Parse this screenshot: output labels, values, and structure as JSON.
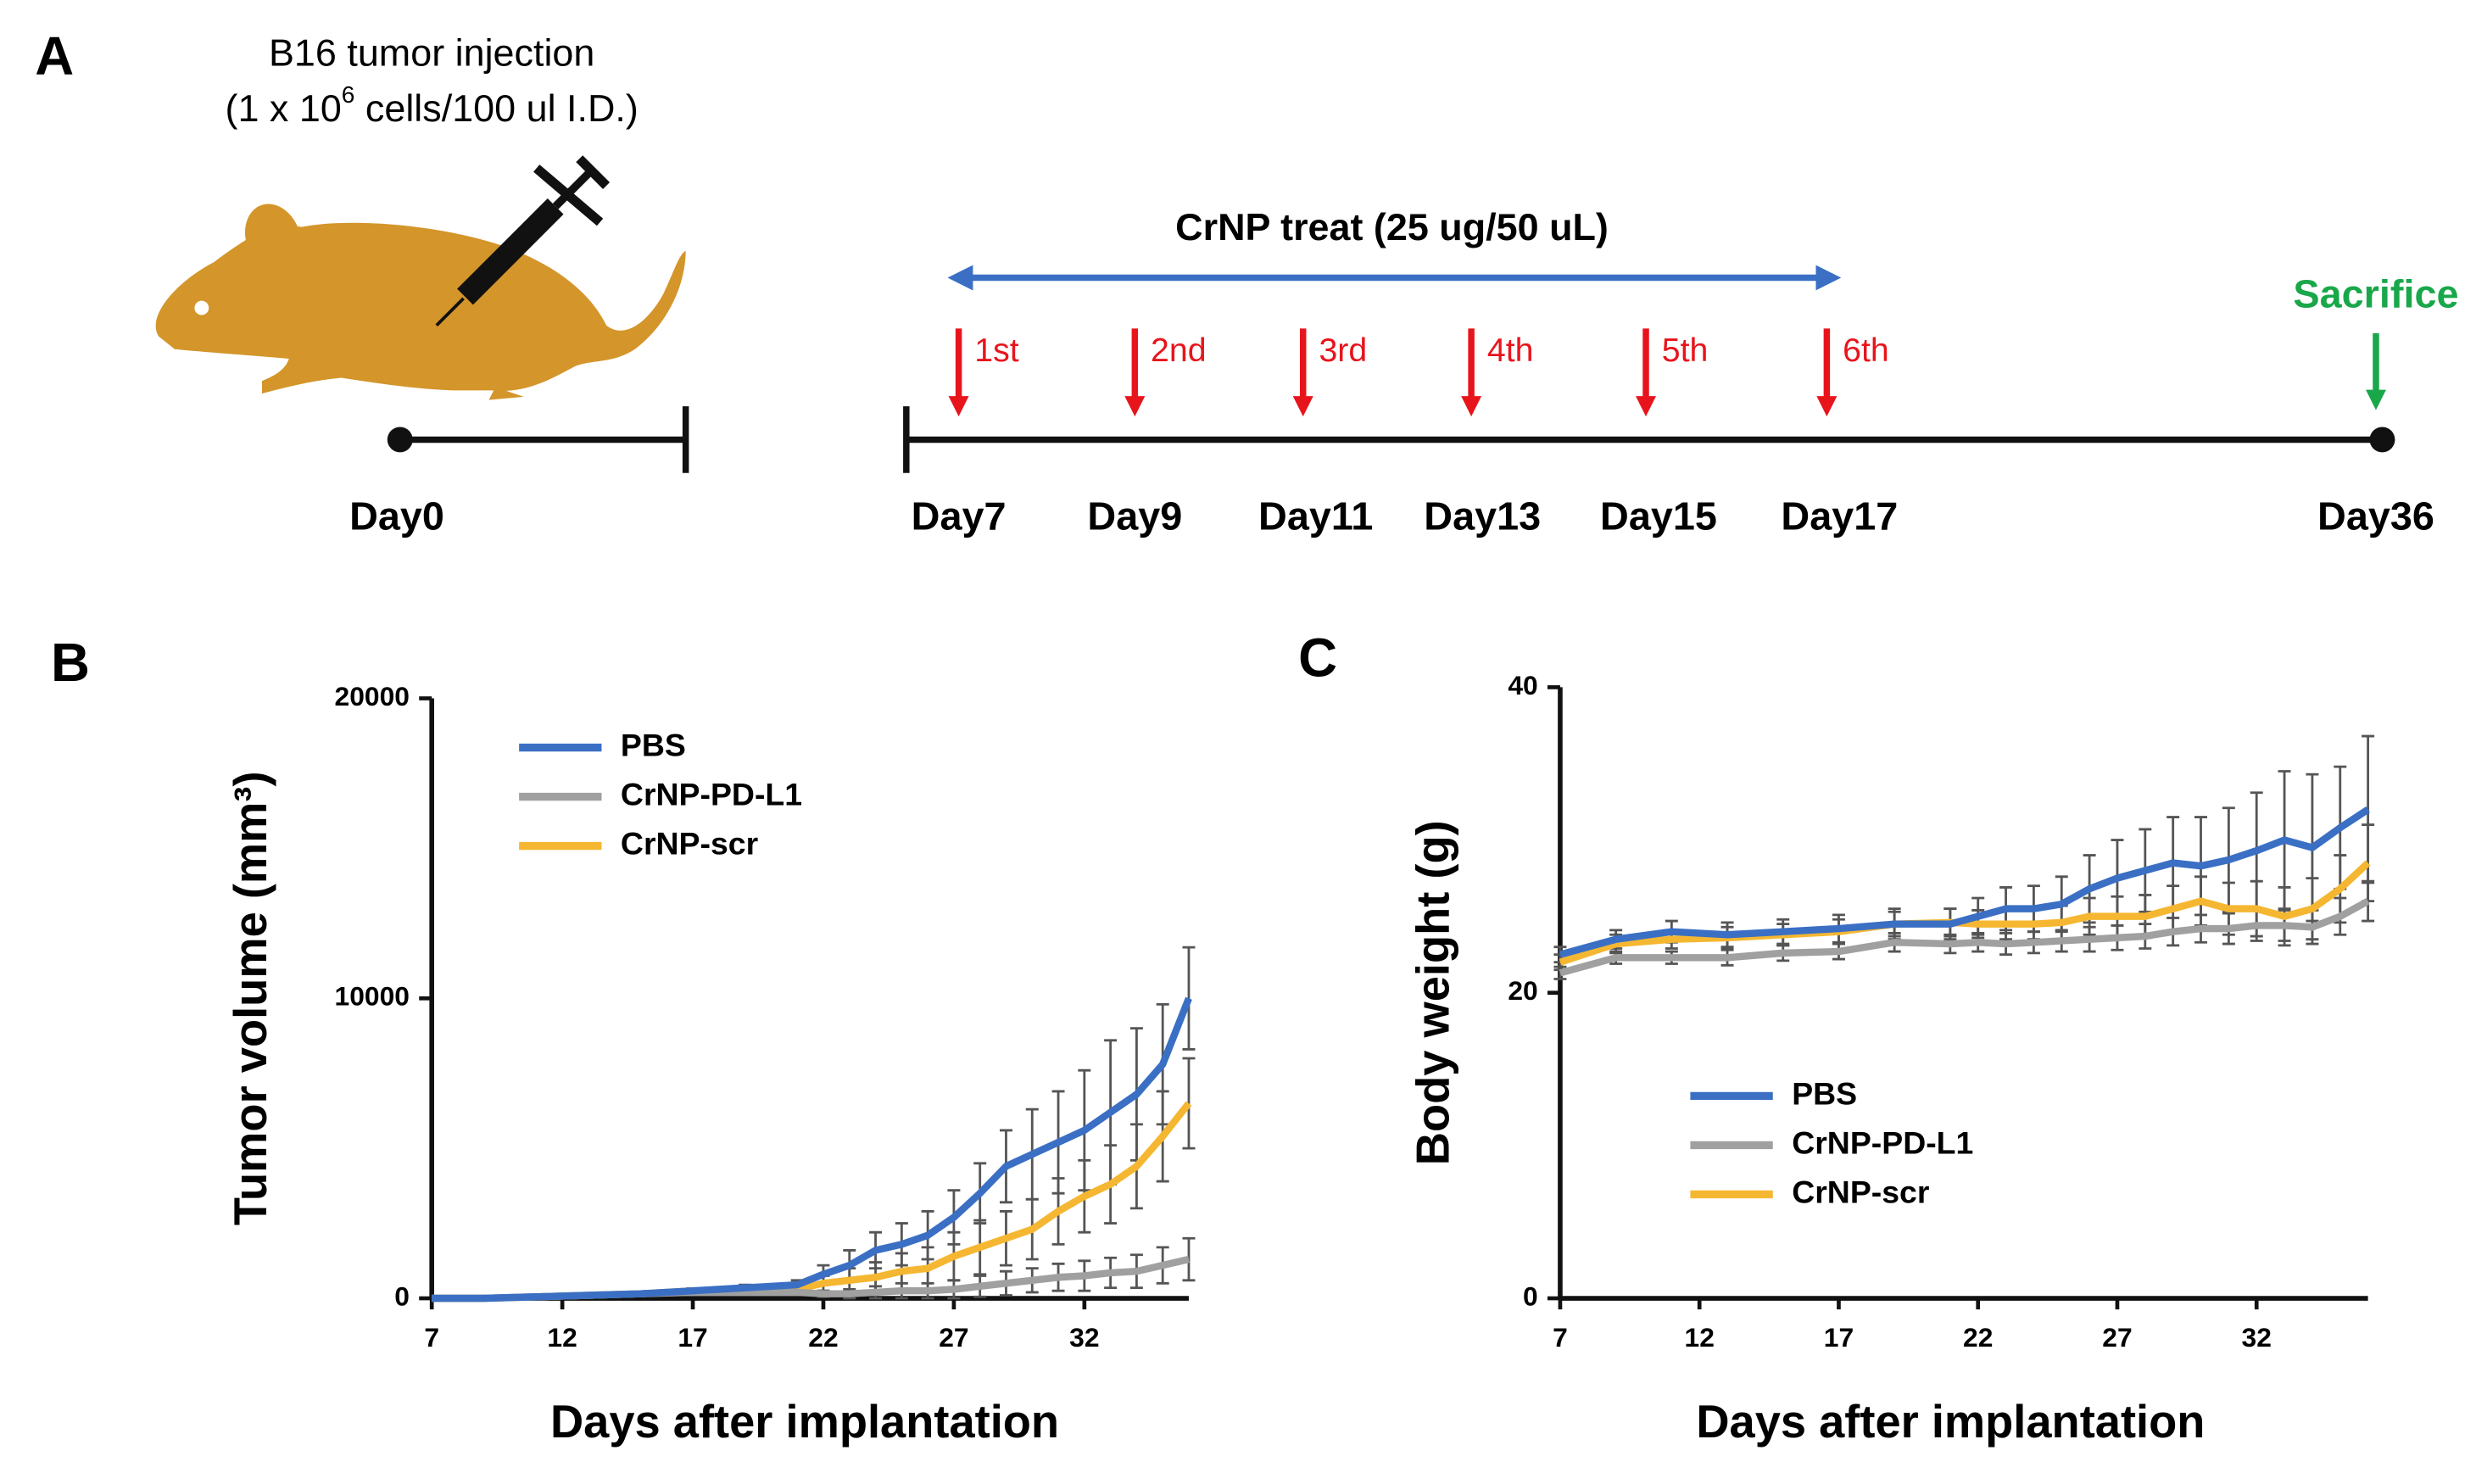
{
  "panel_a": {
    "label": "A",
    "injection": {
      "line1": "B16 tumor injection",
      "line2_start": "(1 x 10",
      "line2_sup": "6",
      "line2_end": " cells/100 ul I.D.)"
    },
    "treatment": "CrNP treat (25 ug/50 uL)",
    "doses": [
      "1st",
      "2nd",
      "3rd",
      "4th",
      "5th",
      "6th"
    ],
    "days": [
      "Day0",
      "Day7",
      "Day9",
      "Day11",
      "Day13",
      "Day15",
      "Day17",
      "Day36"
    ],
    "sacrifice": "Sacrifice"
  },
  "chart_data": [
    {
      "type": "line",
      "label": "B",
      "x_label": "Days after implantation",
      "y_label": "Tumor volume (mm³)",
      "x": [
        7,
        9,
        11,
        13,
        15,
        17,
        19,
        21,
        22,
        23,
        24,
        25,
        26,
        27,
        28,
        29,
        30,
        31,
        32,
        33,
        34,
        35,
        36
      ],
      "xlim": [
        7,
        36
      ],
      "xticks": [
        7,
        12,
        17,
        22,
        27,
        32
      ],
      "ylim": [
        0,
        20000
      ],
      "yticks": [
        0,
        10000,
        20000
      ],
      "legend": "upper left",
      "series": [
        {
          "name": "PBS",
          "color": "#3a6fc4",
          "values": [
            0,
            0,
            50,
            100,
            150,
            250,
            350,
            450,
            800,
            1100,
            1600,
            1800,
            2100,
            2700,
            3500,
            4400,
            4800,
            5200,
            5600,
            6200,
            6800,
            7800,
            10000
          ],
          "errors": [
            0,
            0,
            20,
            40,
            50,
            80,
            100,
            150,
            300,
            500,
            600,
            700,
            800,
            900,
            1000,
            1200,
            1500,
            1700,
            2000,
            2400,
            2200,
            2000,
            1700
          ]
        },
        {
          "name": "CrNP-PD-L1",
          "color": "#a0a0a0",
          "values": [
            0,
            0,
            50,
            100,
            150,
            200,
            200,
            200,
            150,
            150,
            200,
            250,
            250,
            300,
            400,
            500,
            600,
            700,
            750,
            850,
            900,
            1100,
            1300
          ],
          "errors": [
            0,
            0,
            20,
            30,
            40,
            50,
            60,
            80,
            100,
            150,
            200,
            250,
            250,
            300,
            350,
            400,
            400,
            450,
            500,
            500,
            550,
            600,
            700
          ]
        },
        {
          "name": "CrNP-scr",
          "color": "#f5b731",
          "values": [
            0,
            0,
            50,
            100,
            150,
            250,
            300,
            300,
            500,
            600,
            700,
            900,
            1000,
            1400,
            1700,
            2000,
            2300,
            2900,
            3400,
            3800,
            4400,
            5400,
            6500
          ],
          "errors": [
            0,
            0,
            20,
            40,
            50,
            80,
            100,
            150,
            250,
            400,
            500,
            600,
            700,
            800,
            900,
            900,
            1000,
            1100,
            1200,
            1300,
            1400,
            1500,
            1500
          ]
        }
      ]
    },
    {
      "type": "line",
      "label": "C",
      "x_label": "Days after implantation",
      "y_label": "Body weight (g)",
      "x": [
        7,
        9,
        11,
        13,
        15,
        17,
        19,
        21,
        22,
        23,
        24,
        25,
        26,
        27,
        28,
        29,
        30,
        31,
        32,
        33,
        34,
        35,
        36
      ],
      "xlim": [
        7,
        36
      ],
      "xticks": [
        7,
        12,
        17,
        22,
        27,
        32
      ],
      "ylim": [
        0,
        40
      ],
      "yticks": [
        0,
        20,
        40
      ],
      "legend": "center left",
      "series": [
        {
          "name": "PBS",
          "color": "#3a6fc4",
          "values": [
            22.5,
            23.5,
            24,
            23.8,
            24,
            24.2,
            24.5,
            24.5,
            25,
            25.5,
            25.5,
            25.8,
            26.8,
            27.5,
            28,
            28.5,
            28.3,
            28.7,
            29.3,
            30,
            29.5,
            30.8,
            32
          ],
          "errors": [
            0.5,
            0.6,
            0.7,
            0.8,
            0.8,
            0.9,
            1,
            1,
            1.2,
            1.4,
            1.5,
            1.8,
            2.2,
            2.5,
            2.7,
            3,
            3.2,
            3.4,
            3.8,
            4.5,
            4.8,
            4,
            4.8
          ]
        },
        {
          "name": "CrNP-PD-L1",
          "color": "#a0a0a0",
          "values": [
            21.3,
            22.3,
            22.3,
            22.3,
            22.6,
            22.7,
            23.3,
            23.2,
            23.3,
            23.2,
            23.3,
            23.4,
            23.5,
            23.6,
            23.7,
            24,
            24.2,
            24.2,
            24.4,
            24.4,
            24.3,
            25,
            26
          ],
          "errors": [
            0.4,
            0.4,
            0.4,
            0.5,
            0.5,
            0.5,
            0.6,
            0.6,
            0.6,
            0.7,
            0.7,
            0.7,
            0.8,
            0.8,
            0.8,
            0.9,
            0.9,
            1,
            1,
            1,
            1.1,
            1.2,
            1.3
          ]
        },
        {
          "name": "CrNP-scr",
          "color": "#f5b731",
          "values": [
            22,
            23.2,
            23.5,
            23.6,
            23.8,
            24,
            24.5,
            24.6,
            24.5,
            24.5,
            24.5,
            24.6,
            25,
            25,
            25,
            25.5,
            26,
            25.5,
            25.5,
            25,
            25.5,
            26.8,
            28.5
          ],
          "errors": [
            0.5,
            0.6,
            0.6,
            0.7,
            0.7,
            0.8,
            0.8,
            0.9,
            0.9,
            1,
            1,
            1.1,
            1.2,
            1.3,
            1.4,
            1.5,
            1.6,
            1.7,
            1.8,
            1.9,
            2,
            2.2,
            2.5
          ]
        }
      ]
    }
  ]
}
